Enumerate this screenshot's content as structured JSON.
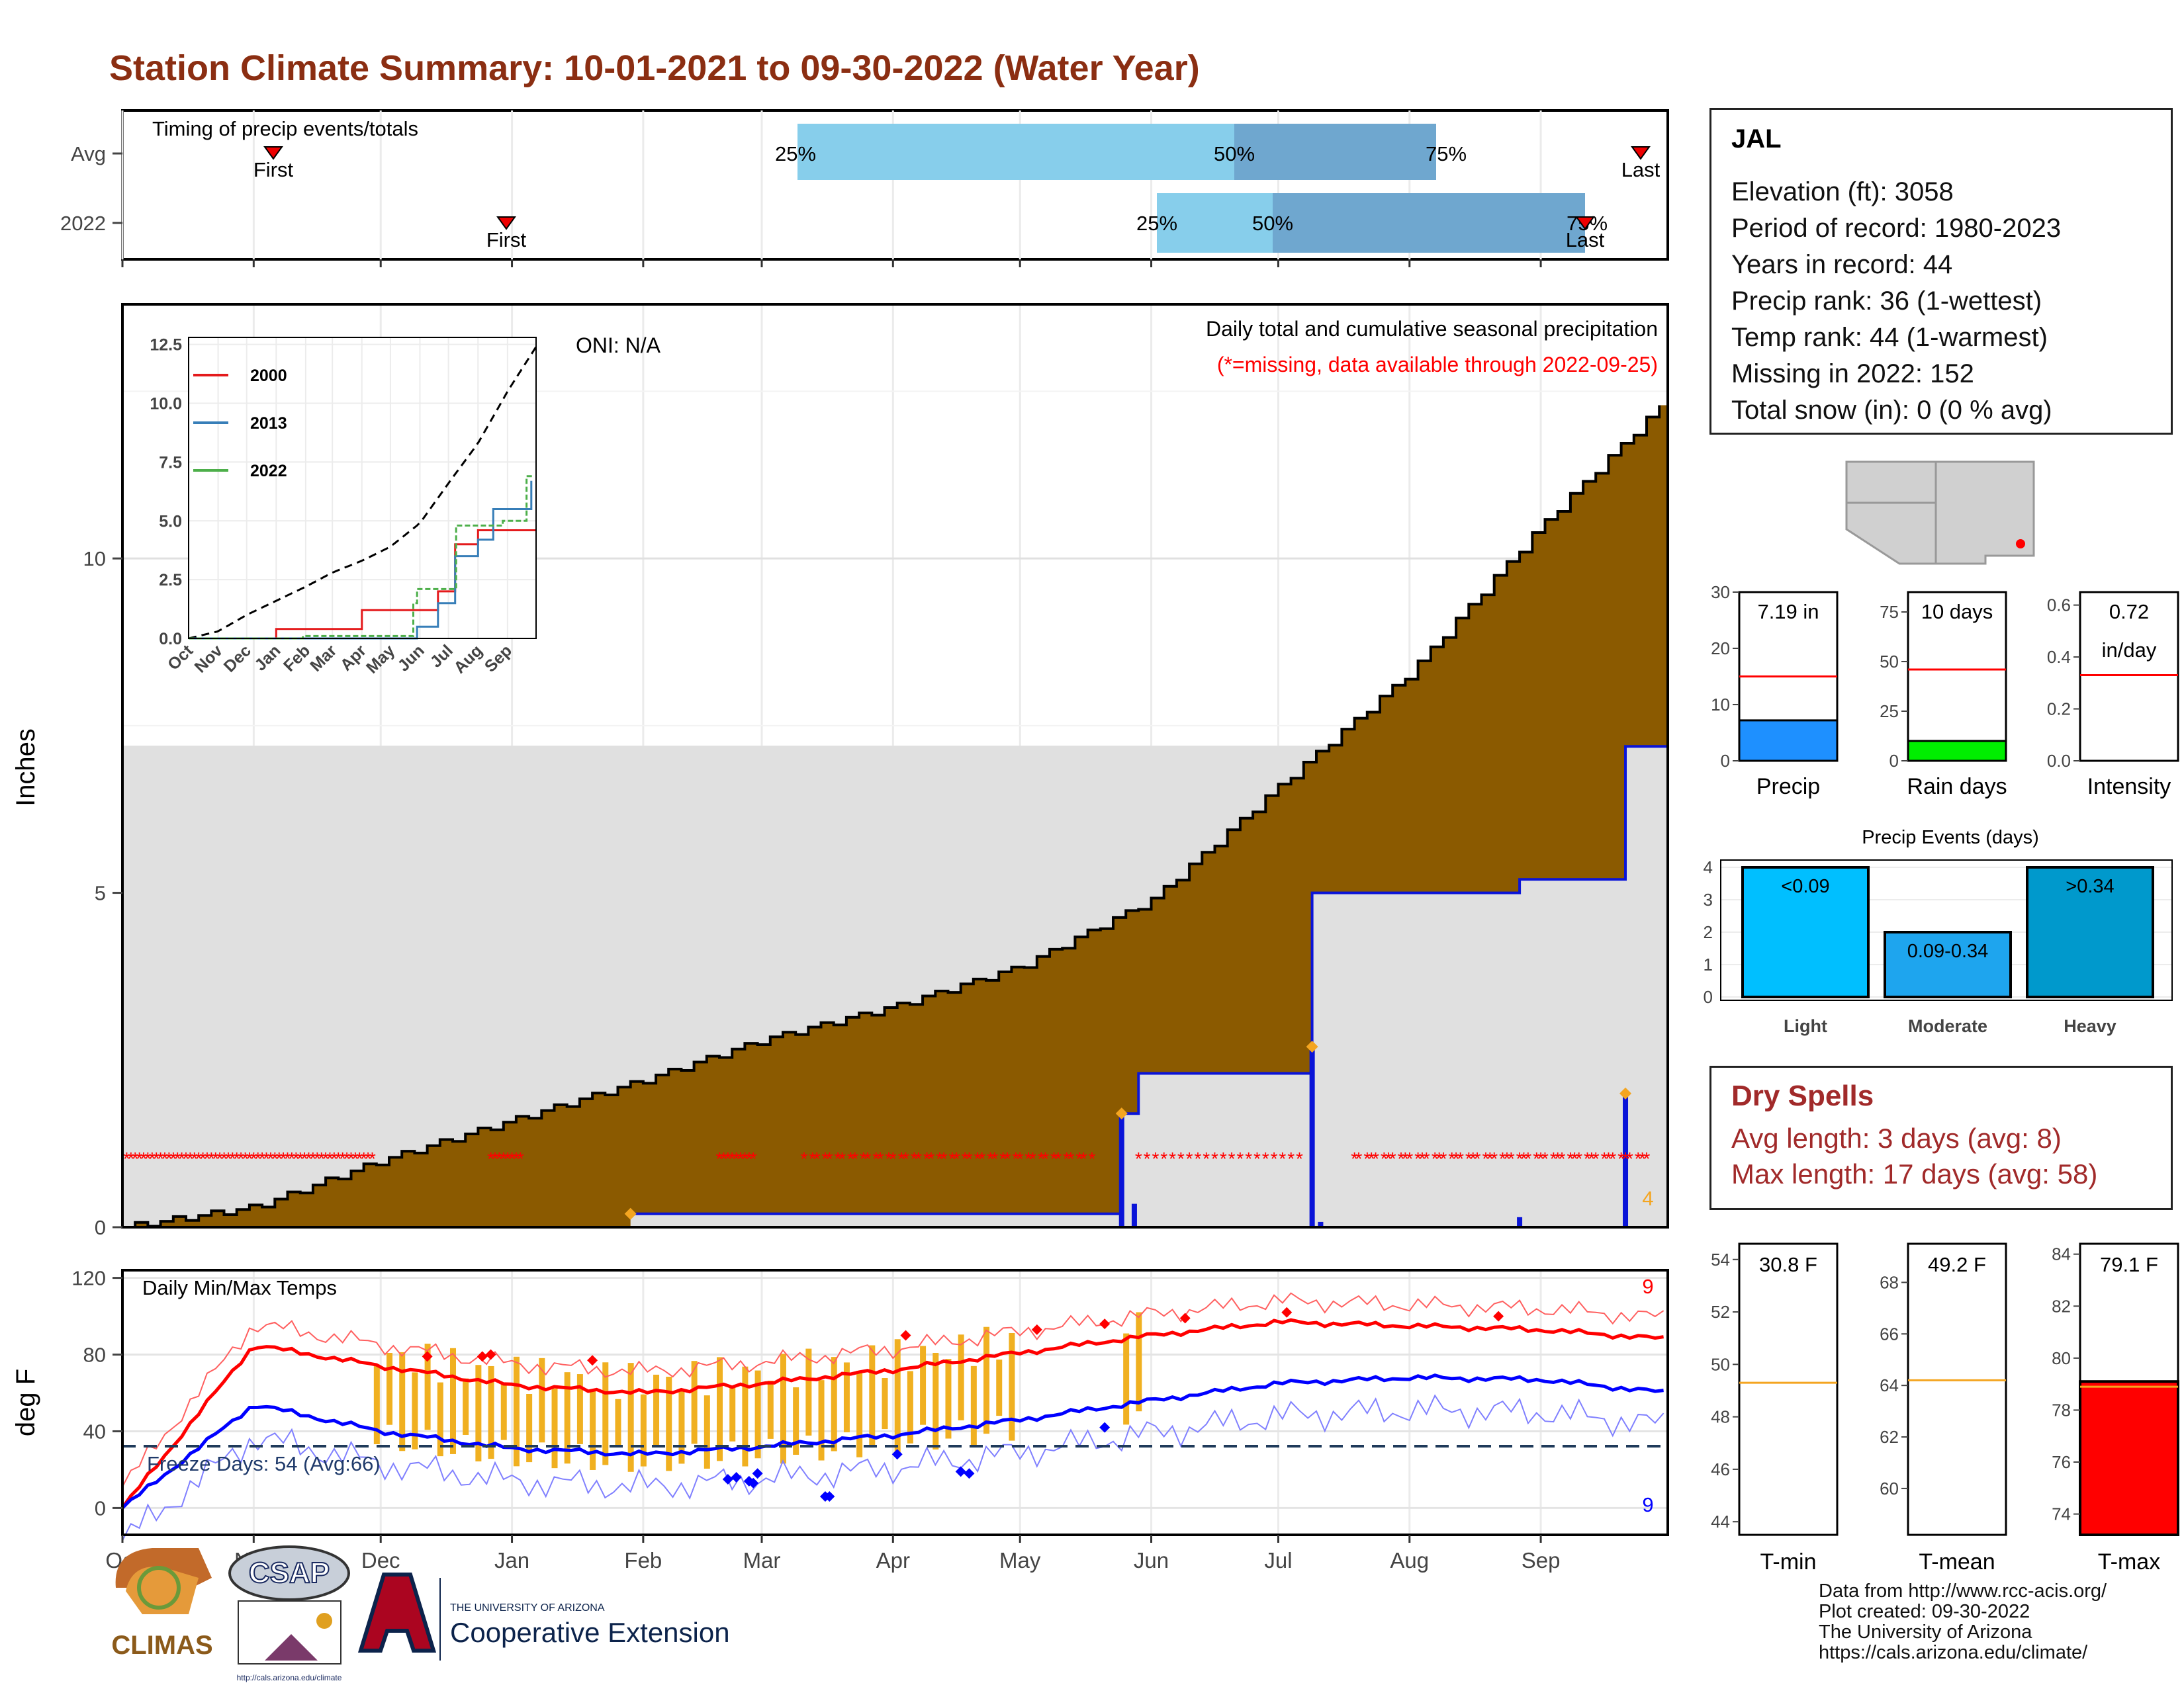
{
  "title": "Station Climate Summary: 10-01-2021 to 09-30-2022 (Water Year)",
  "timing": {
    "label": "Timing of precip events/totals",
    "rows": [
      {
        "name": "Avg",
        "first_label": "First",
        "last_label": "Last",
        "p25": "25%",
        "p50": "50%",
        "p75": "75%"
      },
      {
        "name": "2022",
        "first_label": "First",
        "last_label": "Last",
        "p25": "25%",
        "p50": "50%",
        "p75": "75%"
      }
    ]
  },
  "station": {
    "name": "JAL",
    "lines": [
      "Elevation (ft): 3058",
      "Period of record: 1980-2023",
      "Years in record: 44",
      "Precip rank: 36 (1-wettest)",
      "Temp rank: 44 (1-warmest)",
      "Missing in 2022: 152",
      "Total snow (in): 0 (0 % avg)"
    ]
  },
  "precip_panel": {
    "ylabel": "Inches",
    "oni": "ONI: N/A",
    "note1": "Daily total and cumulative seasonal precipitation",
    "note2": "(*=missing, data available through 2022-09-25)",
    "count_label": "4"
  },
  "temp_panel": {
    "ylabel": "deg F",
    "label": "Daily Min/Max Temps",
    "freeze": "Freeze Days: 54 (Avg:66)",
    "max_count": "9",
    "min_count": "9"
  },
  "months": [
    "Oct",
    "Nov",
    "Dec",
    "Jan",
    "Feb",
    "Mar",
    "Apr",
    "May",
    "Jun",
    "Jul",
    "Aug",
    "Sep"
  ],
  "inset": {
    "months": [
      "Oct",
      "Nov",
      "Dec",
      "Jan",
      "Feb",
      "Mar",
      "Apr",
      "May",
      "Jun",
      "Jul",
      "Aug",
      "Sep"
    ],
    "legend": [
      "2000",
      "2013",
      "2022"
    ]
  },
  "bars": {
    "precip": {
      "label": "Precip",
      "value_text": "7.19 in"
    },
    "raindays": {
      "label": "Rain days",
      "value_text": "10 days"
    },
    "intensity": {
      "label": "Intensity",
      "value_text1": "0.72",
      "value_text2": "in/day"
    }
  },
  "events": {
    "title": "Precip Events (days)",
    "cats": [
      "Light",
      "Moderate",
      "Heavy"
    ],
    "labels": [
      "<0.09",
      "0.09-0.34",
      ">0.34"
    ]
  },
  "temps": {
    "tmin": {
      "label": "T-min",
      "value_text": "30.8 F"
    },
    "tmean": {
      "label": "T-mean",
      "value_text": "49.2 F"
    },
    "tmax": {
      "label": "T-max",
      "value_text": "79.1 F"
    }
  },
  "dry": {
    "title": "Dry Spells",
    "avg": "Avg length: 3 days (avg: 8)",
    "max": "Max length: 17 days (avg: 58)"
  },
  "credits": [
    "Data from http://www.rcc-acis.org/",
    "Plot created: 09-30-2022",
    "The University of Arizona",
    "https://cals.arizona.edu/climate/"
  ],
  "logos": {
    "climas": "CLIMAS",
    "csap": "CSAP",
    "csap_url": "http://cals.arizona.edu/climate",
    "ua_small": "THE UNIVERSITY OF ARIZONA",
    "ua_big": "Cooperative Extension"
  },
  "colors": {
    "title": "#8b2e12",
    "cum": "#8b5a00",
    "avgcum": "#e0e0e0",
    "daily": "#0a14d8",
    "max": "#ff0000",
    "min": "#0000ff",
    "anom": "#f0b020",
    "dry": "#a12a2a"
  },
  "chart_data": [
    {
      "type": "area",
      "title": "Daily total and cumulative seasonal precipitation",
      "ylabel": "Inches",
      "ylim": [
        0,
        13.5
      ],
      "x": [
        "Oct",
        "Nov",
        "Dec",
        "Jan",
        "Feb",
        "Mar",
        "Apr",
        "May",
        "Jun",
        "Jul",
        "Aug",
        "Sep"
      ],
      "series": [
        {
          "name": "avg_cumulative",
          "values": [
            0.3,
            1.0,
            1.6,
            2.2,
            2.8,
            3.3,
            3.9,
            4.9,
            6.6,
            8.3,
            10.5,
            12.4
          ]
        },
        {
          "name": "cumulative_2022",
          "values": [
            0,
            0,
            0,
            0,
            0.2,
            0.2,
            0.2,
            0.2,
            2.3,
            5.0,
            5.2,
            7.19
          ]
        }
      ]
    },
    {
      "type": "bar",
      "categories": [
        "Light",
        "Moderate",
        "Heavy"
      ],
      "values": [
        4,
        2,
        4
      ],
      "ylim": [
        0,
        4
      ]
    },
    {
      "type": "line",
      "title": "Daily Min/Max Temps",
      "ylabel": "deg F",
      "ylim": [
        -10,
        120
      ],
      "x": [
        "Oct",
        "Nov",
        "Dec",
        "Jan",
        "Feb",
        "Mar",
        "Apr",
        "May",
        "Jun",
        "Jul",
        "Aug",
        "Sep"
      ],
      "series": [
        {
          "name": "avg_max",
          "values": [
            85,
            74,
            64,
            60,
            65,
            72,
            81,
            90,
            97,
            95,
            93,
            88
          ]
        },
        {
          "name": "avg_min",
          "values": [
            54,
            40,
            31,
            28,
            32,
            38,
            46,
            56,
            65,
            68,
            67,
            60
          ]
        }
      ]
    }
  ]
}
